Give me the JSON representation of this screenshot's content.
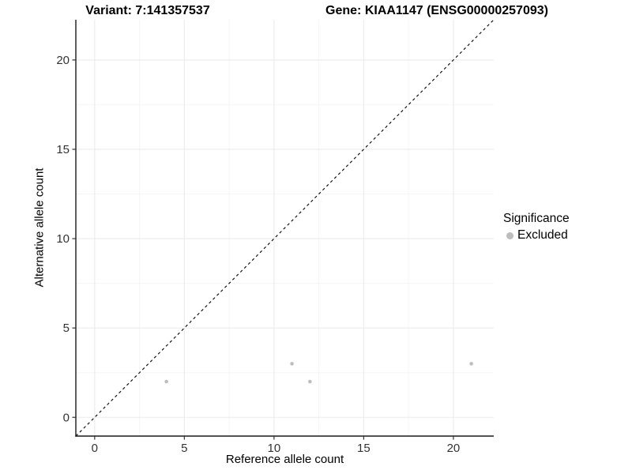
{
  "chart_data": {
    "type": "scatter",
    "titles": {
      "left": "Variant: 7:141357537",
      "right": "Gene: KIAA1147 (ENSG00000257093)"
    },
    "xlabel": "Reference allele count",
    "ylabel": "Alternative allele count",
    "x_ticks": [
      0,
      5,
      10,
      15,
      20
    ],
    "y_ticks": [
      0,
      5,
      10,
      15,
      20
    ],
    "x_minor": [
      2.5,
      7.5,
      12.5,
      17.5
    ],
    "y_minor": [
      2.5,
      7.5,
      12.5,
      17.5
    ],
    "xlim": [
      -1.05,
      22.25
    ],
    "ylim": [
      -1.05,
      22.25
    ],
    "grid": true,
    "series": [
      {
        "name": "Excluded",
        "color": "#bdbdbd",
        "points": [
          {
            "x": 4,
            "y": 2
          },
          {
            "x": 11,
            "y": 3
          },
          {
            "x": 12,
            "y": 2
          },
          {
            "x": 21,
            "y": 3
          }
        ]
      }
    ],
    "reference_line": {
      "type": "identity",
      "style": "dashed",
      "color": "#000000"
    },
    "legend": {
      "position": "right",
      "title": "Significance",
      "items": [
        {
          "label": "Excluded",
          "color": "#bdbdbd"
        }
      ]
    },
    "colors": {
      "background": "#ffffff",
      "major_grid": "#ebebeb",
      "minor_grid": "#f5f5f5",
      "axis_line": "#1a1a1a",
      "tick": "#333333",
      "point": "#bdbdbd"
    }
  }
}
